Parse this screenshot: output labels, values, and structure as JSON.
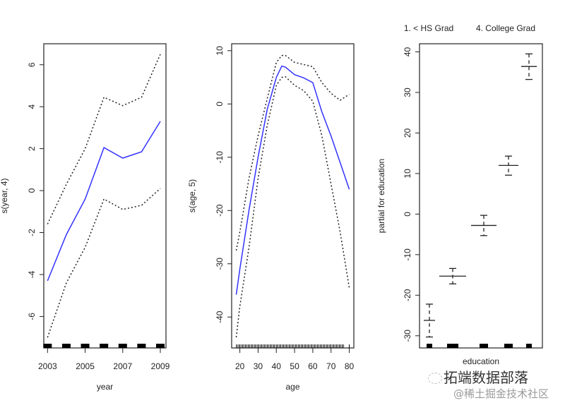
{
  "chart_data": [
    {
      "type": "line",
      "xlabel": "year",
      "ylabel": "s(year, 4)",
      "xlim": [
        2002.8,
        2009.3
      ],
      "ylim": [
        -7.5,
        7.0
      ],
      "xticks": [
        2003,
        2005,
        2007,
        2009
      ],
      "yticks": [
        -6,
        -4,
        -2,
        0,
        2,
        4,
        6
      ],
      "grid": false,
      "x": [
        2003,
        2004,
        2005,
        2006,
        2007,
        2008,
        2009
      ],
      "series": [
        {
          "role": "fit",
          "color": "#3333ff",
          "style": "solid",
          "values": [
            -4.3,
            -2.1,
            -0.4,
            2.05,
            1.55,
            1.85,
            3.3
          ]
        },
        {
          "role": "upper",
          "color": "#222222",
          "style": "dotted",
          "values": [
            -1.6,
            0.3,
            2.0,
            4.45,
            4.05,
            4.45,
            6.5
          ]
        },
        {
          "role": "lower",
          "color": "#222222",
          "style": "dotted",
          "values": [
            -7.0,
            -4.4,
            -2.7,
            -0.4,
            -0.9,
            -0.7,
            0.1
          ]
        }
      ],
      "rug": [
        2003,
        2004,
        2005,
        2006,
        2007,
        2008,
        2009
      ]
    },
    {
      "type": "line",
      "xlabel": "age",
      "ylabel": "s(age, 5)",
      "xlim": [
        15.5,
        82.5
      ],
      "ylim": [
        -45.8,
        11.3
      ],
      "xticks": [
        20,
        30,
        40,
        50,
        60,
        70,
        80
      ],
      "yticks": [
        -40,
        -30,
        -20,
        -10,
        0,
        10
      ],
      "grid": false,
      "x": [
        18,
        20,
        25,
        30,
        35,
        40,
        43,
        45,
        50,
        55,
        60,
        65,
        70,
        75,
        80
      ],
      "series": [
        {
          "role": "fit",
          "color": "#3333ff",
          "style": "solid",
          "values": [
            -35.8,
            -31,
            -20,
            -10,
            -1,
            5,
            7.1,
            6.9,
            5.5,
            4.9,
            4.0,
            -1.5,
            -6,
            -11,
            -16
          ]
        },
        {
          "role": "upper",
          "color": "#222222",
          "style": "dotted",
          "values": [
            -27.5,
            -24,
            -14,
            -6,
            1,
            7.8,
            9.1,
            9.1,
            7.8,
            7.4,
            7.0,
            4.0,
            2.0,
            0.7,
            1.8
          ]
        },
        {
          "role": "lower",
          "color": "#222222",
          "style": "dotted",
          "values": [
            -43.8,
            -38,
            -27,
            -14,
            -4,
            3.5,
            5.0,
            5.1,
            3.5,
            2.5,
            0.5,
            -6,
            -15,
            -24,
            -34.5
          ]
        }
      ],
      "rug_range": [
        18,
        80
      ]
    },
    {
      "type": "step-errorbar",
      "xlabel": "education",
      "ylabel": "partial for education",
      "ylim": [
        -33,
        42
      ],
      "yticks": [
        -30,
        -20,
        -10,
        0,
        10,
        20,
        30,
        40
      ],
      "grid": false,
      "category_labels_shown": [
        "1. < HS Grad",
        "4. College Grad"
      ],
      "levels": [
        1,
        2,
        3,
        4,
        5
      ],
      "values": [
        -26.2,
        -15.3,
        -2.8,
        12.0,
        36.4
      ],
      "upper": [
        -22.2,
        -13.4,
        -0.3,
        14.3,
        39.5
      ],
      "lower": [
        -30.3,
        -17.2,
        -5.3,
        9.6,
        33.2
      ],
      "rug_relative_count": [
        1,
        3,
        2,
        2,
        1
      ]
    }
  ],
  "watermark": {
    "line1": "拓端数据部落",
    "line2": "@稀土掘金技术社区"
  }
}
